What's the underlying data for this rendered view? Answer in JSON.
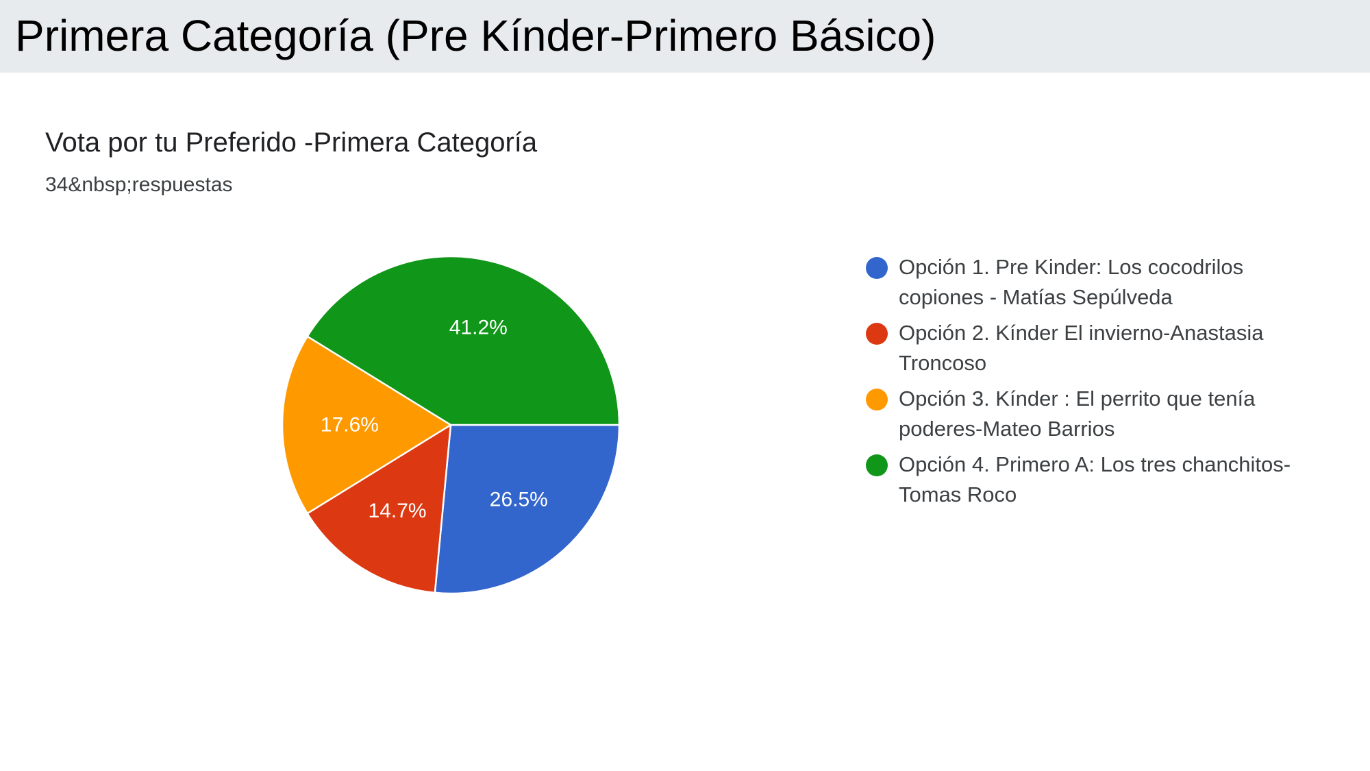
{
  "header": {
    "title": "Primera Categoría (Pre Kínder-Primero Básico)"
  },
  "card": {
    "title": "Vota por tu Preferido -Primera Categoría",
    "subtitle": "34&nbsp;respuestas"
  },
  "chart_data": {
    "type": "pie",
    "title": "Vota por tu Preferido -Primera Categoría",
    "subtitle": "34&nbsp;respuestas",
    "total_responses": 34,
    "legend_position": "right",
    "slices": [
      {
        "label": "Opción 1. Pre Kinder: Los cocodrilos copiones - Matías Sepúlveda",
        "value": 26.5,
        "display": "26.5%",
        "color": "#3366cc"
      },
      {
        "label": "Opción 2. Kínder El invierno-Anastasia Troncoso",
        "value": 14.7,
        "display": "14.7%",
        "color": "#dc3912"
      },
      {
        "label": "Opción 3. Kínder : El perrito que tenía poderes-Mateo Barrios",
        "value": 17.6,
        "display": "17.6%",
        "color": "#ff9900"
      },
      {
        "label": "Opción 4. Primero A: Los tres chanchitos- Tomas Roco",
        "value": 41.2,
        "display": "41.2%",
        "color": "#109618"
      }
    ]
  }
}
